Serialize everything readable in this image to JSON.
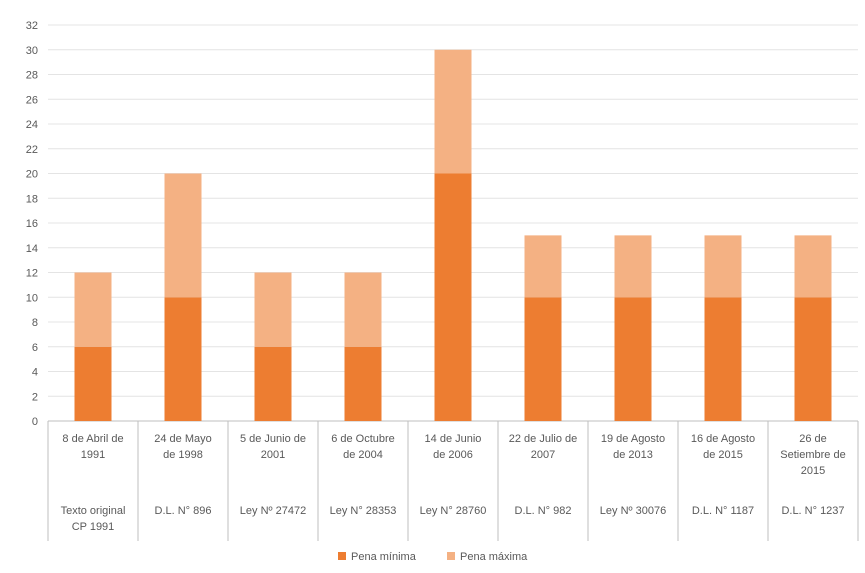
{
  "chart_data": {
    "type": "bar",
    "stacked": true,
    "title": "",
    "xlabel": "",
    "ylabel": "",
    "ylim": [
      0,
      32
    ],
    "ytick_step": 2,
    "grid": true,
    "legend_position": "bottom",
    "categories": [
      {
        "date": [
          "8 de Abril de",
          "1991"
        ],
        "law": [
          "Texto original",
          "CP 1991"
        ]
      },
      {
        "date": [
          "24 de Mayo",
          "de 1998"
        ],
        "law": [
          "D.L. N° 896"
        ]
      },
      {
        "date": [
          "5 de Junio de",
          "2001"
        ],
        "law": [
          "Ley Nº 27472"
        ]
      },
      {
        "date": [
          "6 de Octubre",
          "de 2004"
        ],
        "law": [
          "Ley N° 28353"
        ]
      },
      {
        "date": [
          "14 de Junio",
          "de 2006"
        ],
        "law": [
          "Ley N° 28760"
        ]
      },
      {
        "date": [
          "22 de Julio de",
          "2007"
        ],
        "law": [
          "D.L. N° 982"
        ]
      },
      {
        "date": [
          "19 de Agosto",
          "de 2013"
        ],
        "law": [
          "Ley Nº 30076"
        ]
      },
      {
        "date": [
          "16 de Agosto",
          "de 2015"
        ],
        "law": [
          "D.L. N° 1187"
        ]
      },
      {
        "date": [
          "26 de",
          "Setiembre de",
          "2015"
        ],
        "law": [
          "D.L. N° 1237"
        ]
      }
    ],
    "series": [
      {
        "name": "Pena mínima",
        "color": "#ED7D31",
        "values": [
          6,
          10,
          6,
          6,
          20,
          10,
          10,
          10,
          10
        ]
      },
      {
        "name": "Pena máxima",
        "color": "#F4B183",
        "values": [
          6,
          10,
          6,
          6,
          10,
          5,
          5,
          5,
          5
        ]
      }
    ],
    "colors": {
      "grid": "#E4E4E4",
      "axis": "#BFBFBF",
      "text": "#595959"
    }
  }
}
